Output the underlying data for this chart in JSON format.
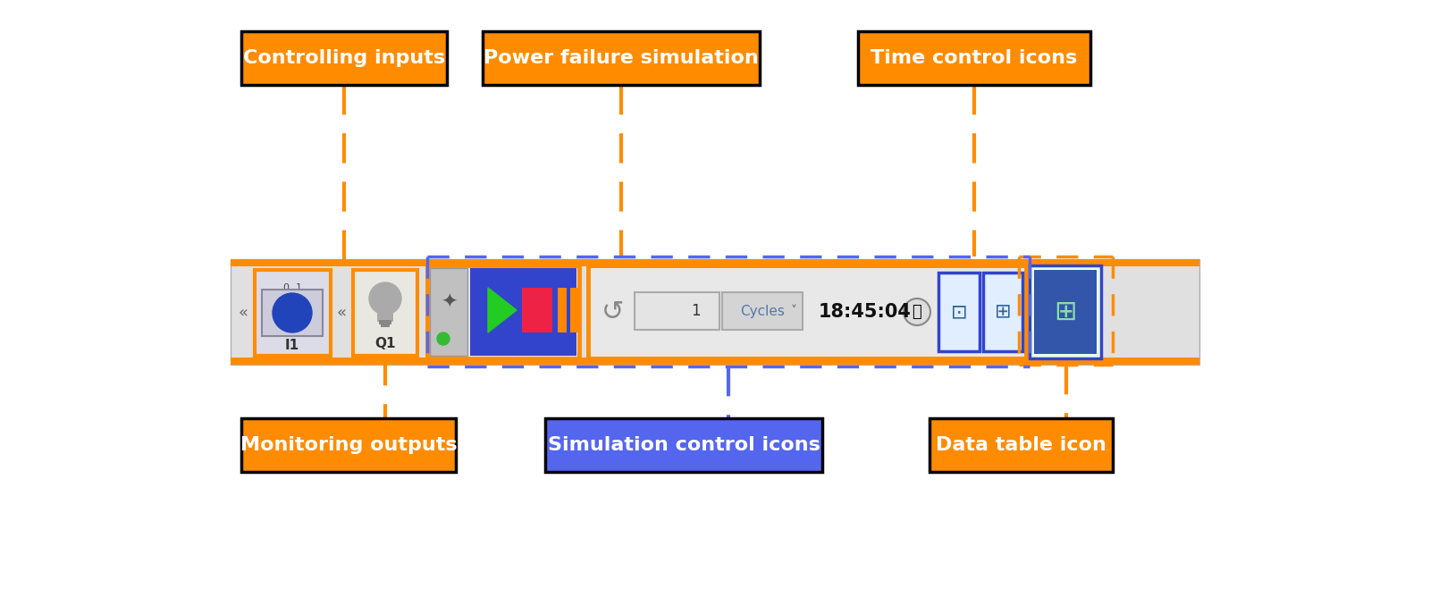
{
  "fig_width": 16.0,
  "fig_height": 6.87,
  "bg_color": "#ffffff",
  "orange": "#FF8C00",
  "blue_box": "#5566EE",
  "black": "#000000",
  "white": "#ffffff",
  "labels": {
    "controlling_inputs": "Controlling inputs",
    "power_failure": "Power failure simulation",
    "time_control": "Time control icons",
    "monitoring_outputs": "Monitoring outputs",
    "simulation_control": "Simulation control icons",
    "data_table": "Data table icon"
  }
}
